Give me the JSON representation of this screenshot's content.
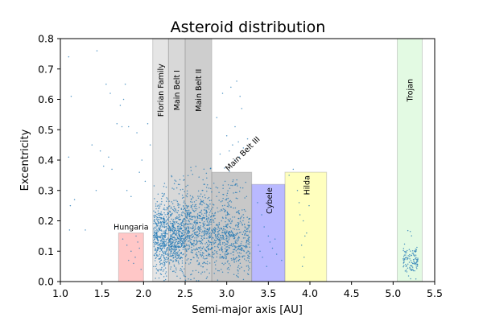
{
  "chart_data": {
    "type": "scatter",
    "title": "Asteroid distribution",
    "xlabel": "Semi-major axis [AU]",
    "ylabel": "Excentricity",
    "xlim": [
      1.0,
      5.5
    ],
    "ylim": [
      0.0,
      0.8
    ],
    "xticks": [
      "1.0",
      "1.5",
      "2.0",
      "2.5",
      "3.0",
      "3.5",
      "4.0",
      "4.5",
      "5.0",
      "5.5"
    ],
    "yticks": [
      "0.0",
      "0.1",
      "0.2",
      "0.3",
      "0.4",
      "0.5",
      "0.6",
      "0.7",
      "0.8"
    ],
    "grid": false,
    "point_color": "#1f77b4",
    "regions": [
      {
        "label": "Hungaria",
        "a_min": 1.7,
        "a_max": 2.0,
        "e_max": 0.16,
        "color": "#ff9999",
        "label_rotation": 0
      },
      {
        "label": "Florian Family",
        "a_min": 2.11,
        "a_max": 2.3,
        "e_max": 0.8,
        "color": "#cfcfcf",
        "label_rotation": -90
      },
      {
        "label": "Main Belt I",
        "a_min": 2.3,
        "a_max": 2.5,
        "e_max": 0.8,
        "color": "#b8b8b8",
        "label_rotation": -90
      },
      {
        "label": "Main Belt II",
        "a_min": 2.5,
        "a_max": 2.82,
        "e_max": 0.8,
        "color": "#a6a6a6",
        "label_rotation": -90
      },
      {
        "label": "Main Belt III",
        "a_min": 2.82,
        "a_max": 3.3,
        "e_max": 0.36,
        "color": "#9a9a9a",
        "label_rotation": -45
      },
      {
        "label": "Cybele",
        "a_min": 3.3,
        "a_max": 3.7,
        "e_max": 0.32,
        "color": "#8080ff",
        "label_rotation": -90
      },
      {
        "label": "Hilda",
        "a_min": 3.7,
        "a_max": 4.2,
        "e_max": 0.36,
        "color": "#ffff88",
        "label_rotation": -90
      },
      {
        "label": "Trojan",
        "a_min": 5.05,
        "a_max": 5.35,
        "e_max": 0.8,
        "color": "#ccf5cc",
        "label_rotation": -90
      }
    ],
    "scatter_points": [
      [
        1.1,
        0.74
      ],
      [
        1.13,
        0.61
      ],
      [
        1.44,
        0.76
      ],
      [
        1.55,
        0.65
      ],
      [
        1.6,
        0.62
      ],
      [
        1.78,
        0.65
      ],
      [
        1.76,
        0.6
      ],
      [
        1.48,
        0.43
      ],
      [
        1.58,
        0.41
      ],
      [
        1.52,
        0.38
      ],
      [
        1.62,
        0.37
      ],
      [
        1.72,
        0.58
      ],
      [
        1.68,
        0.52
      ],
      [
        1.74,
        0.51
      ],
      [
        1.82,
        0.51
      ],
      [
        1.92,
        0.49
      ],
      [
        2.05,
        0.52
      ],
      [
        2.08,
        0.45
      ],
      [
        1.98,
        0.4
      ],
      [
        1.43,
        0.3
      ],
      [
        1.1,
        0.41
      ],
      [
        1.12,
        0.25
      ],
      [
        1.17,
        0.27
      ],
      [
        1.11,
        0.17
      ],
      [
        1.3,
        0.17
      ],
      [
        1.8,
        0.3
      ],
      [
        1.85,
        0.28
      ],
      [
        2.02,
        0.33
      ],
      [
        1.95,
        0.36
      ],
      [
        1.38,
        0.45
      ],
      [
        1.66,
        0.18
      ],
      [
        3.12,
        0.66
      ],
      [
        3.05,
        0.64
      ],
      [
        3.16,
        0.61
      ],
      [
        3.18,
        0.57
      ],
      [
        3.1,
        0.51
      ],
      [
        3.0,
        0.48
      ],
      [
        3.14,
        0.46
      ],
      [
        3.07,
        0.45
      ],
      [
        2.88,
        0.54
      ],
      [
        2.95,
        0.62
      ],
      [
        3.03,
        0.43
      ],
      [
        3.2,
        0.44
      ],
      [
        2.92,
        0.42
      ],
      [
        3.1,
        0.4
      ],
      [
        3.15,
        0.41
      ],
      [
        3.25,
        0.47
      ],
      [
        3.8,
        0.37
      ],
      [
        3.75,
        0.35
      ],
      [
        3.85,
        0.3
      ],
      [
        3.87,
        0.26
      ],
      [
        3.88,
        0.22
      ],
      [
        3.95,
        0.34
      ],
      [
        3.92,
        0.2
      ],
      [
        3.96,
        0.16
      ],
      [
        3.9,
        0.12
      ],
      [
        3.93,
        0.08
      ],
      [
        3.97,
        0.29
      ],
      [
        3.99,
        0.25
      ],
      [
        3.94,
        0.15
      ],
      [
        3.91,
        0.05
      ],
      [
        3.37,
        0.26
      ],
      [
        3.42,
        0.22
      ],
      [
        3.45,
        0.18
      ],
      [
        3.5,
        0.15
      ],
      [
        3.4,
        0.1
      ],
      [
        3.55,
        0.11
      ],
      [
        3.6,
        0.09
      ],
      [
        3.48,
        0.05
      ],
      [
        3.52,
        0.13
      ],
      [
        3.43,
        0.08
      ],
      [
        3.58,
        0.14
      ],
      [
        3.38,
        0.12
      ],
      [
        3.66,
        0.07
      ],
      [
        1.75,
        0.14
      ],
      [
        1.8,
        0.12
      ],
      [
        1.85,
        0.1
      ],
      [
        1.9,
        0.08
      ],
      [
        1.93,
        0.13
      ],
      [
        1.88,
        0.06
      ],
      [
        1.95,
        0.11
      ],
      [
        1.97,
        0.04
      ],
      [
        1.82,
        0.07
      ],
      [
        1.91,
        0.15
      ]
    ],
    "scatter_clusters": [
      {
        "a_min": 2.12,
        "a_max": 2.3,
        "e_min": 0.0,
        "e_max": 0.33,
        "e_peak": 0.15,
        "count": 420
      },
      {
        "a_min": 2.3,
        "a_max": 2.5,
        "e_min": 0.0,
        "e_max": 0.35,
        "e_peak": 0.15,
        "count": 480
      },
      {
        "a_min": 2.5,
        "a_max": 2.82,
        "e_min": 0.0,
        "e_max": 0.38,
        "e_peak": 0.17,
        "count": 560
      },
      {
        "a_min": 2.82,
        "a_max": 3.28,
        "e_min": 0.0,
        "e_max": 0.34,
        "e_peak": 0.15,
        "count": 520
      },
      {
        "a_min": 2.95,
        "a_max": 3.05,
        "e_min": 0.0,
        "e_max": 0.4,
        "e_peak": 0.2,
        "count": 50
      },
      {
        "a_min": 5.12,
        "a_max": 5.3,
        "e_min": 0.0,
        "e_max": 0.17,
        "e_peak": 0.07,
        "count": 110
      }
    ]
  }
}
